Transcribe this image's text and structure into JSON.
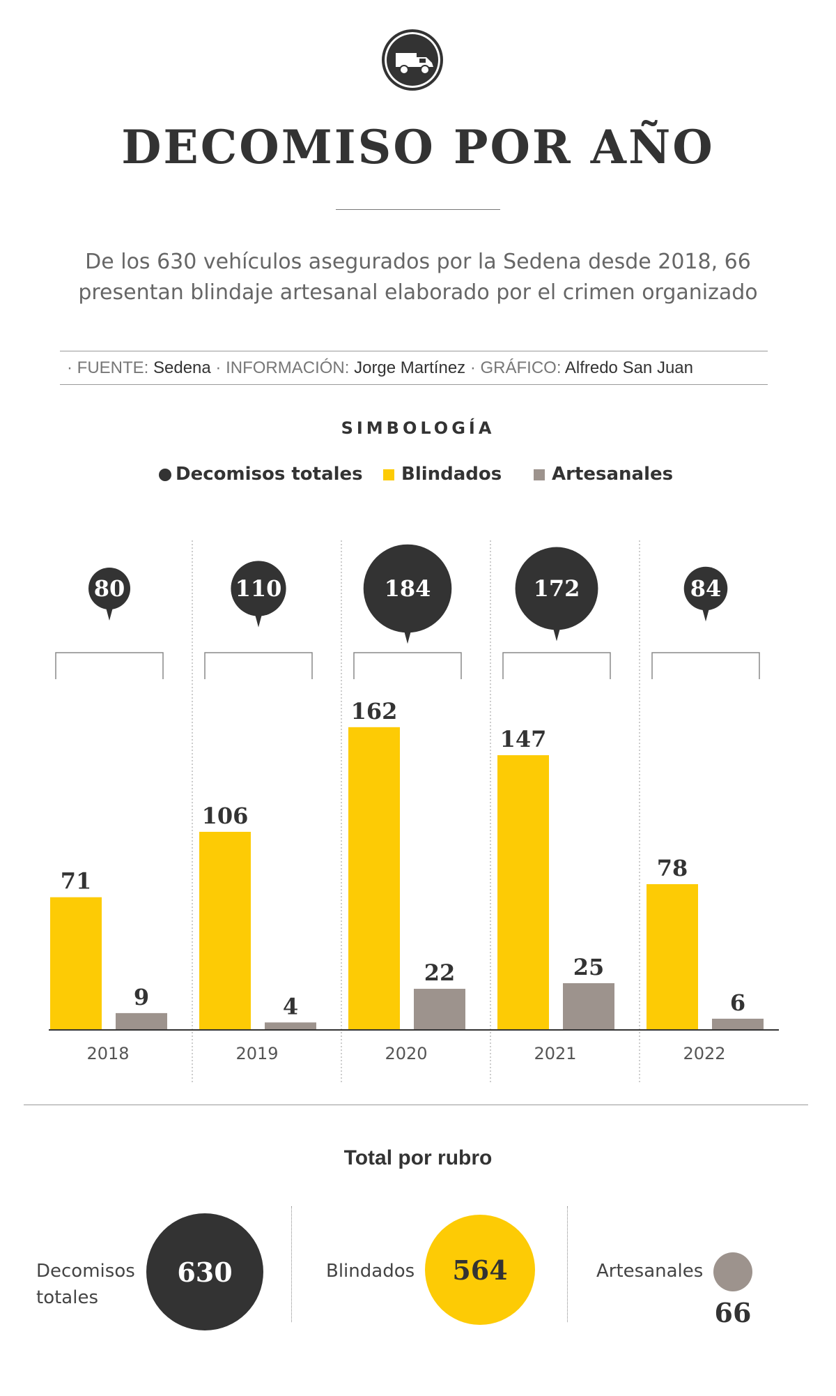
{
  "header": {
    "icon": "truck-icon",
    "title": "DECOMISO POR AÑO",
    "subtitle_line1": "De los 630 vehículos asegurados por la Sedena desde 2018, 66",
    "subtitle_line2": "presentan blindaje artesanal elaborado por el crimen organizado"
  },
  "credits": {
    "fuente_label": "· FUENTE:",
    "fuente": "Sedena",
    "info_label": "· INFORMACIÓN:",
    "info": "Jorge Martínez",
    "grafico_label": "· GRÁFICO:",
    "grafico": "Alfredo San Juan"
  },
  "legend": {
    "title": "SIMBOLOGÍA",
    "items": [
      {
        "label": "Decomisos totales",
        "color": "#333333"
      },
      {
        "label": "Blindados",
        "color": "#fdcb05"
      },
      {
        "label": "Artesanales",
        "color": "#9d938d"
      }
    ]
  },
  "chart_data": {
    "type": "bar",
    "categories": [
      "2018",
      "2019",
      "2020",
      "2021",
      "2022"
    ],
    "totals": [
      80,
      110,
      184,
      172,
      84
    ],
    "series": [
      {
        "name": "Blindados",
        "color": "#fdcb05",
        "values": [
          71,
          106,
          162,
          147,
          78
        ]
      },
      {
        "name": "Artesanales",
        "color": "#9d938d",
        "values": [
          9,
          4,
          22,
          25,
          6
        ]
      }
    ],
    "total_series_name": "Decomisos totales",
    "total_color": "#333333"
  },
  "totals": {
    "title": "Total por rubro",
    "items": [
      {
        "label_line1": "Decomisos",
        "label_line2": "totales",
        "value": "630",
        "color": "#333333"
      },
      {
        "label_line1": "Blindados",
        "label_line2": "",
        "value": "564",
        "color": "#fdcb05"
      },
      {
        "label_line1": "Artesanales",
        "label_line2": "",
        "value": "66",
        "color": "#9d938d"
      }
    ]
  }
}
